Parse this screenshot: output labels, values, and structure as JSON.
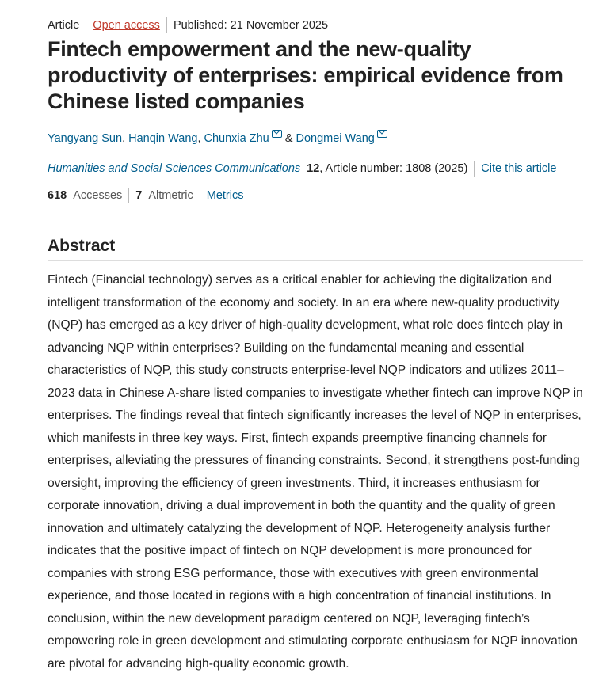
{
  "meta": {
    "type": "Article",
    "access": "Open access",
    "published": "Published: 21 November 2025"
  },
  "title": "Fintech empowerment and the new-quality productivity of enterprises: empirical evidence from Chinese listed companies",
  "authors": [
    "Yangyang Sun",
    "Hanqin Wang",
    "Chunxia Zhu",
    "Dongmei Wang"
  ],
  "author_sep": {
    "comma": ", ",
    "amp": " & "
  },
  "journal": {
    "name": "Humanities and Social Sciences Communications",
    "volume": "12",
    "article_number": ", Article number: 1808 (2025)",
    "cite": "Cite this article"
  },
  "metrics": {
    "accesses_count": "618",
    "accesses_label": "Accesses",
    "altmetric_count": "7",
    "altmetric_label": "Altmetric",
    "metrics_link": "Metrics"
  },
  "abstract": {
    "heading": "Abstract",
    "text": "Fintech (Financial technology) serves as a critical enabler for achieving the digitalization and intelligent transformation of the economy and society. In an era where new-quality productivity (NQP) has emerged as a key driver of high-quality development, what role does fintech play in advancing NQP within enterprises? Building on the fundamental meaning and essential characteristics of NQP, this study constructs enterprise-level NQP indicators and utilizes 2011–2023 data in Chinese A-share listed companies to investigate whether fintech can improve NQP in enterprises. The findings reveal that fintech significantly increases the level of NQP in enterprises, which manifests in three key ways. First, fintech expands preemptive financing channels for enterprises, alleviating the pressures of financing constraints. Second, it strengthens post-funding oversight, improving the efficiency of green investments. Third, it increases enthusiasm for corporate innovation, driving a dual improvement in both the quantity and the quality of green innovation and ultimately catalyzing the development of NQP. Heterogeneity analysis further indicates that the positive impact of fintech on NQP development is more pronounced for companies with strong ESG performance, those with executives with green environmental experience, and those located in regions with a high concentration of financial institutions. In conclusion, within the new development paradigm centered on NQP, leveraging fintech’s empowering role in green development and stimulating corporate enthusiasm for NQP innovation are pivotal for advancing high-quality economic growth."
  }
}
